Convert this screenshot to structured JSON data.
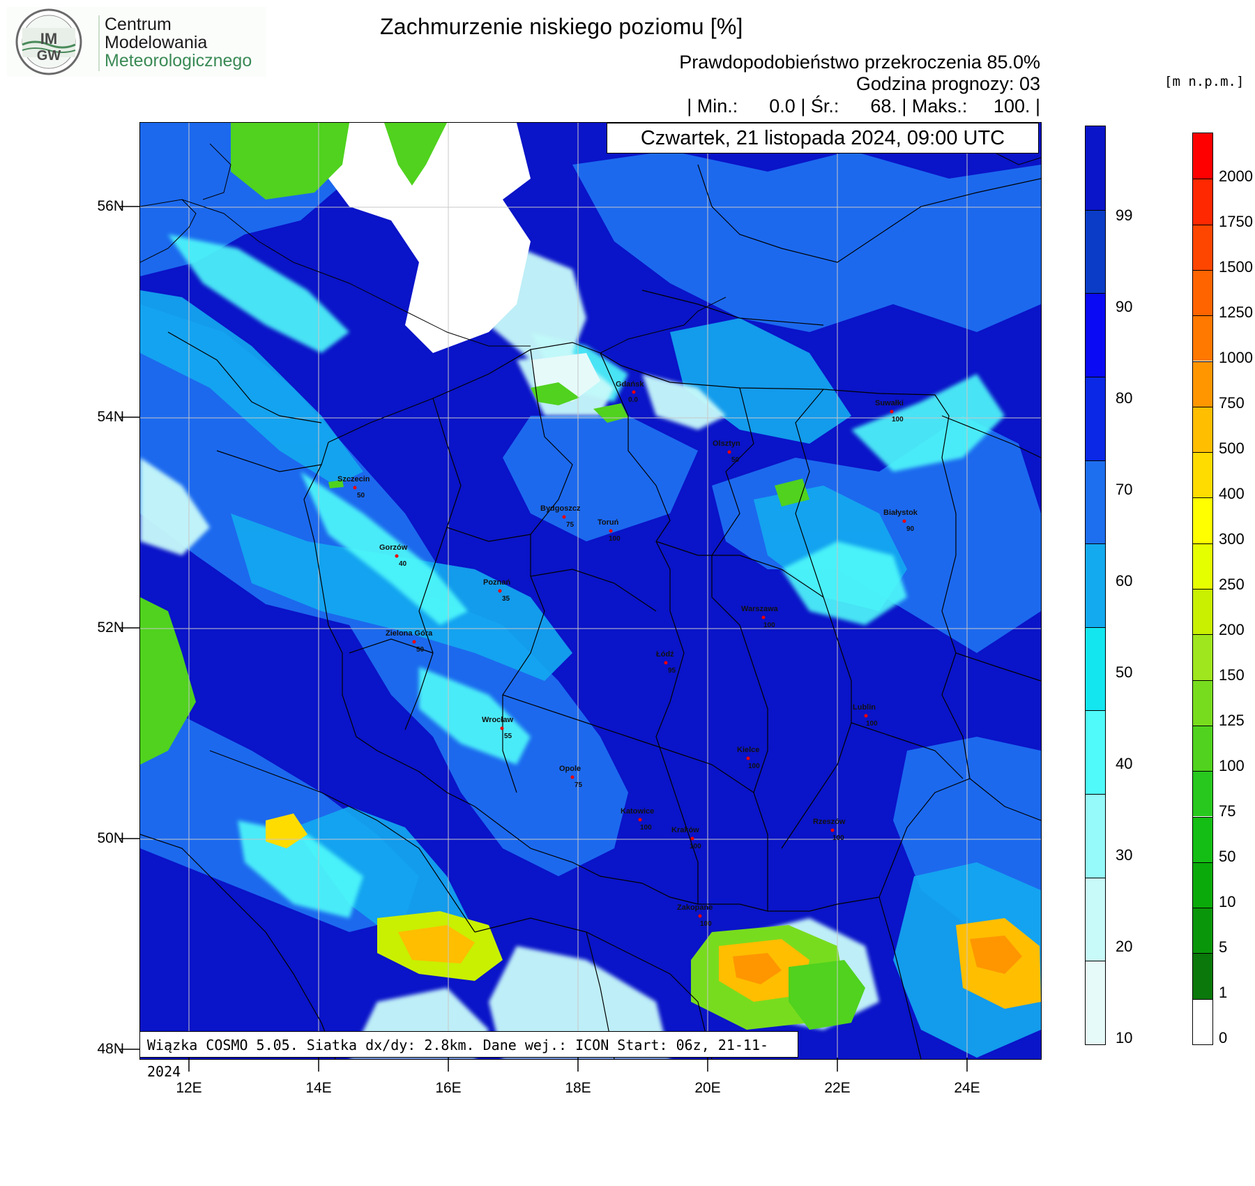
{
  "logo": {
    "badge_text": "IMGW",
    "line1": "Centrum",
    "line2": "Modelowania",
    "line3": "Meteorologicznego"
  },
  "header": {
    "title": "Zachmurzenie niskiego poziomu [%]",
    "line1": "Prawdopodobieństwo przekroczenia 85.0%",
    "line2": "Godzina prognozy: 03",
    "line3": "| Min.:      0.0 | Śr.:      68. | Maks.:     100. |",
    "date": "Czwartek, 21 listopada 2024, 09:00 UTC",
    "units": "[m n.p.m.]"
  },
  "footer": "Wiązka COSMO 5.05. Siatka dx/dy: 2.8km. Dane wej.: ICON Start: 06z, 21-11-2024",
  "axes": {
    "lat_labels": [
      "56N",
      "54N",
      "52N",
      "50N",
      "48N"
    ],
    "lon_labels": [
      "12E",
      "14E",
      "16E",
      "18E",
      "20E",
      "22E",
      "24E"
    ]
  },
  "cloud_colorbar": {
    "labels": [
      "99",
      "90",
      "80",
      "70",
      "60",
      "50",
      "40",
      "30",
      "20",
      "10"
    ],
    "colors": [
      "#0a14c8",
      "#0a3cc8",
      "#0a0af5",
      "#0a28e6",
      "#1e6ef0",
      "#14aaf0",
      "#14e6f0",
      "#50fafa",
      "#96fafa",
      "#c8fafa",
      "#e6fafa"
    ]
  },
  "terrain_colorbar": {
    "labels": [
      "2000",
      "1750",
      "1500",
      "1250",
      "1000",
      "750",
      "500",
      "400",
      "300",
      "250",
      "200",
      "150",
      "125",
      "100",
      "75",
      "50",
      "10",
      "5",
      "1",
      "0"
    ],
    "colors": [
      "#ff0000",
      "#ff2800",
      "#ff4600",
      "#ff6400",
      "#ff7800",
      "#ff9600",
      "#ffbe00",
      "#ffdc00",
      "#ffff00",
      "#e6ff00",
      "#c8f000",
      "#a0e61e",
      "#78dc1e",
      "#50d21e",
      "#28c81e",
      "#14be14",
      "#0aaa0a",
      "#0a960a",
      "#0a780a",
      "#ffffff"
    ]
  },
  "cities": [
    {
      "name": "Gdańsk",
      "value": "0.0"
    },
    {
      "name": "Olsztyn",
      "value": "50"
    },
    {
      "name": "Suwałki",
      "value": "100"
    },
    {
      "name": "Szczecin",
      "value": "50"
    },
    {
      "name": "Bydgoszcz",
      "value": "75"
    },
    {
      "name": "Toruń",
      "value": "100"
    },
    {
      "name": "Białystok",
      "value": "90"
    },
    {
      "name": "Gorzów",
      "value": "40"
    },
    {
      "name": "Poznań",
      "value": "35"
    },
    {
      "name": "Warszawa",
      "value": "100"
    },
    {
      "name": "Zielona Góra",
      "value": "50"
    },
    {
      "name": "Łódź",
      "value": "95"
    },
    {
      "name": "Lublin",
      "value": "100"
    },
    {
      "name": "Wrocław",
      "value": "55"
    },
    {
      "name": "Kielce",
      "value": "100"
    },
    {
      "name": "Opole",
      "value": "75"
    },
    {
      "name": "Katowice",
      "value": "100"
    },
    {
      "name": "Kraków",
      "value": "100"
    },
    {
      "name": "Rzeszów",
      "value": "100"
    },
    {
      "name": "Zakopane",
      "value": "100"
    }
  ]
}
